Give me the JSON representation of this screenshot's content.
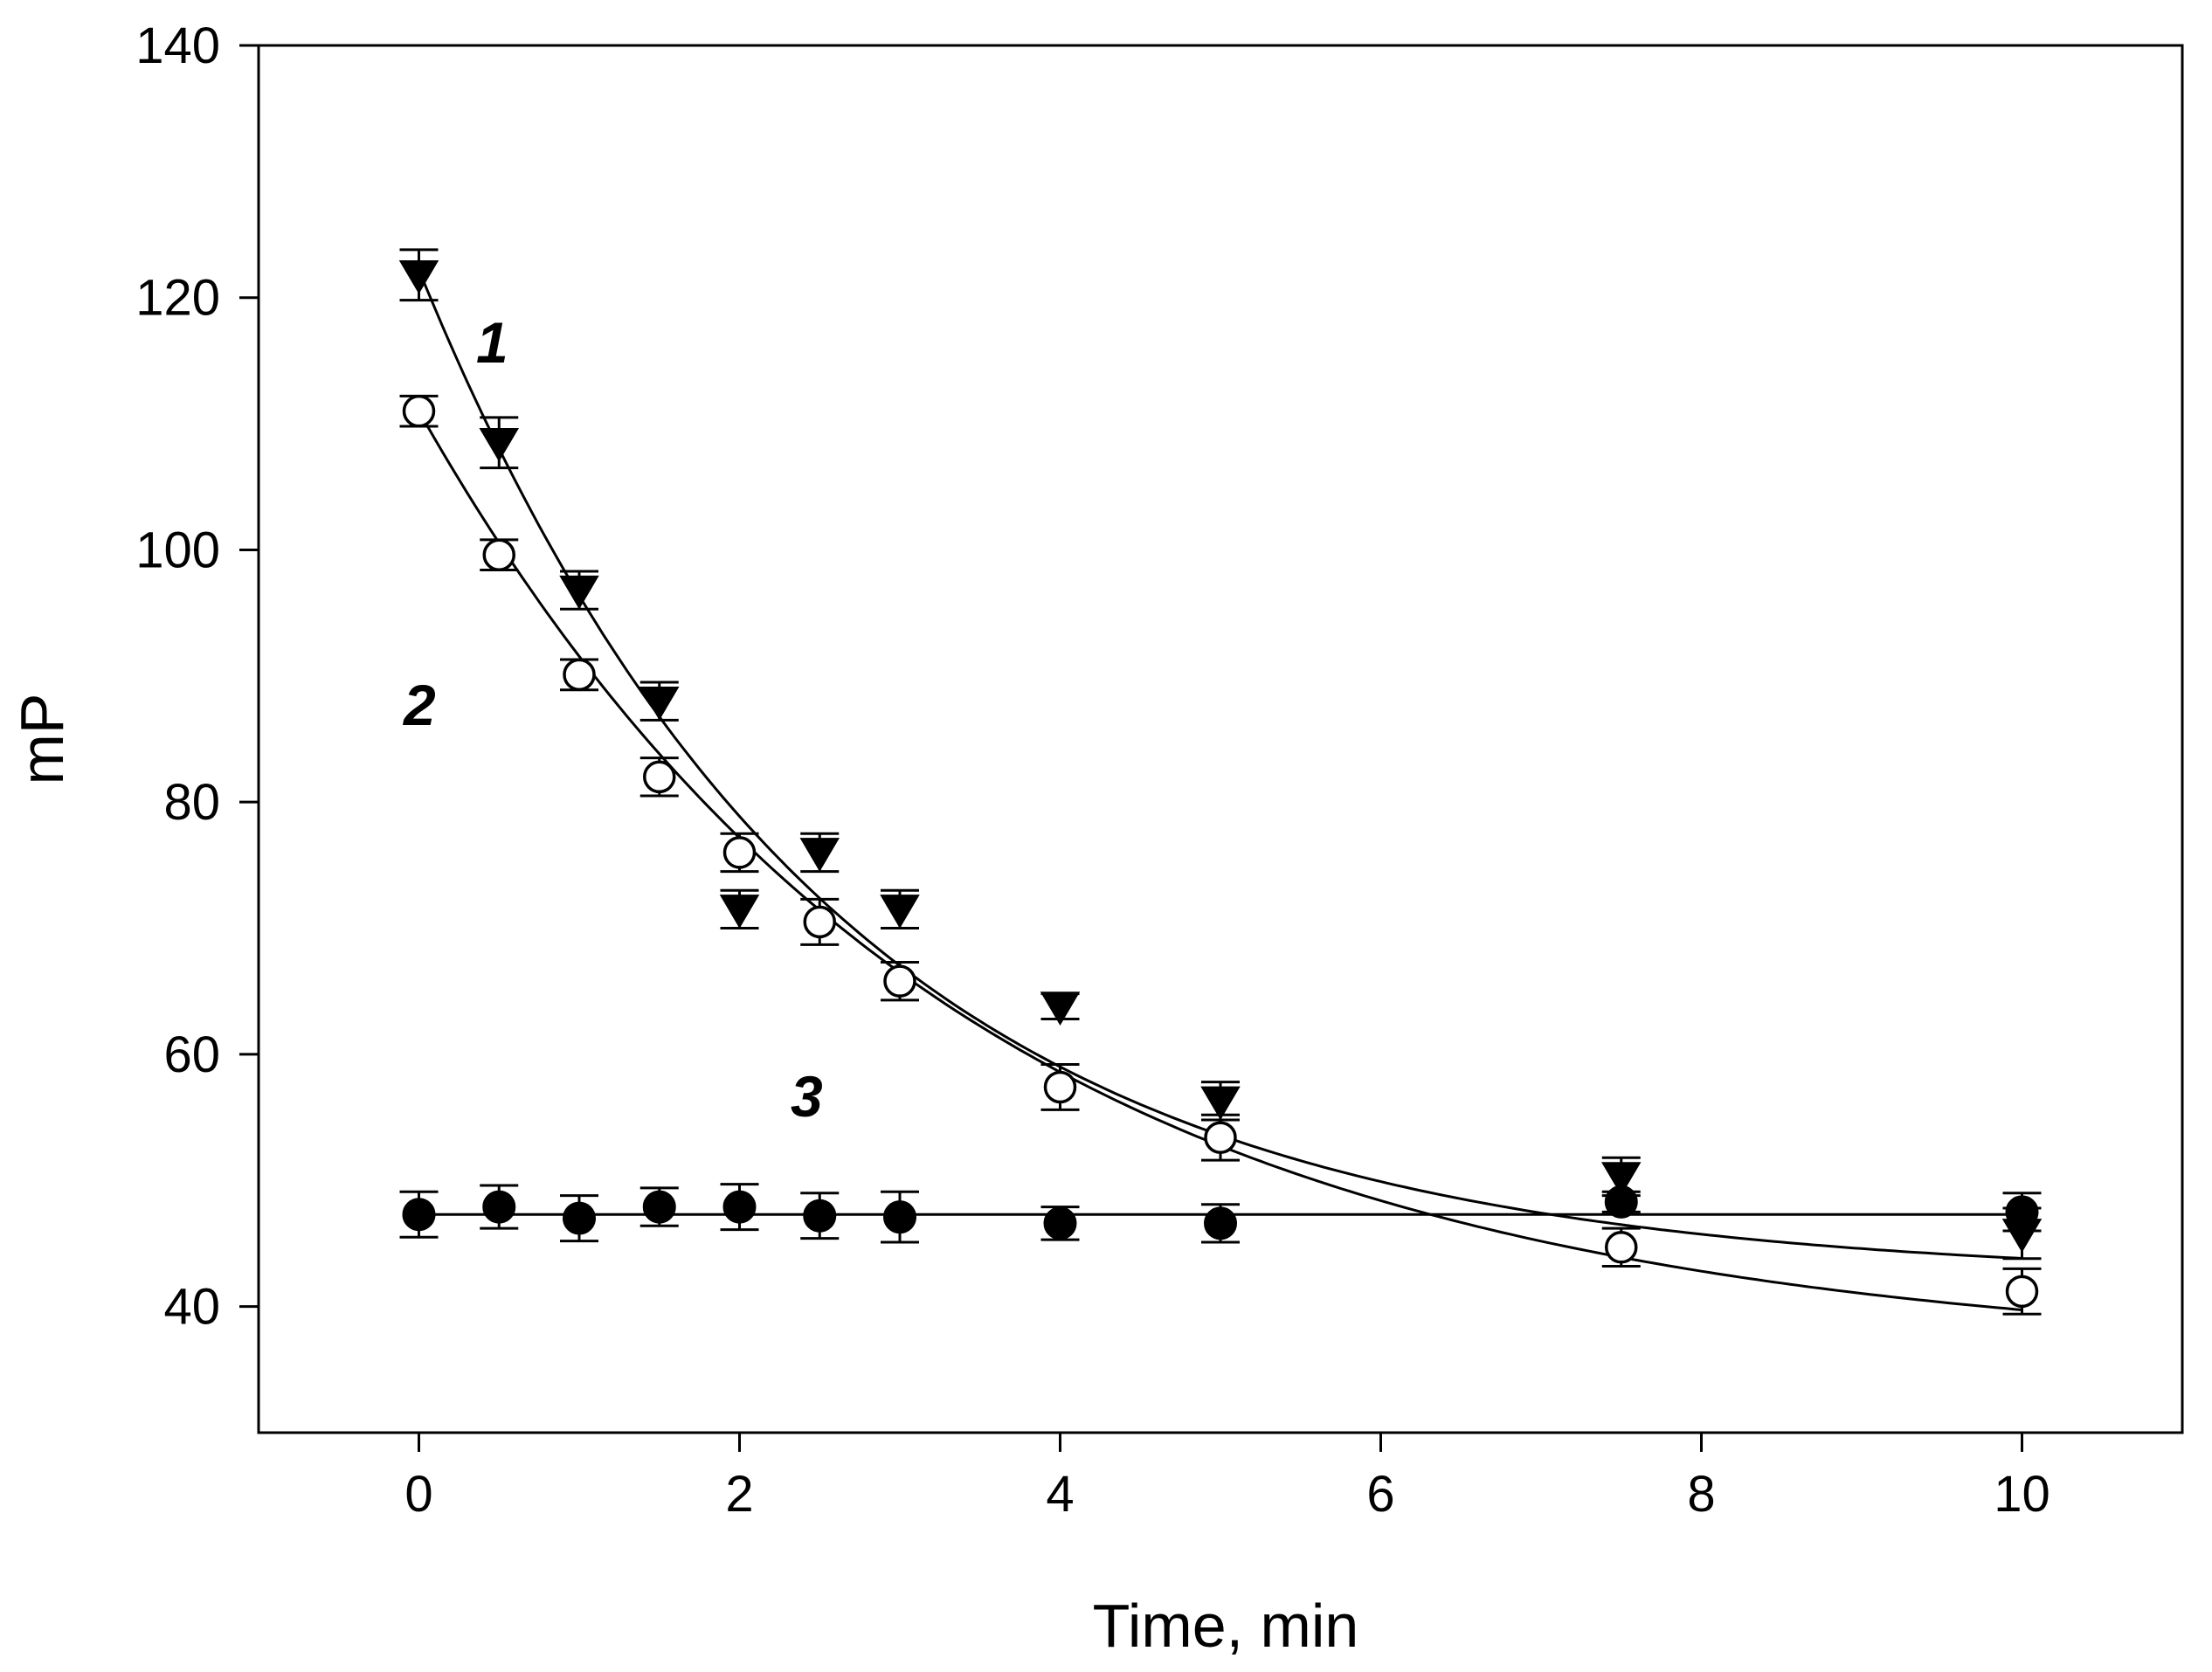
{
  "chart_data": {
    "type": "scatter",
    "title": "",
    "xlabel": "Time, min",
    "ylabel": "mP",
    "xlim": [
      -1,
      11
    ],
    "ylim": [
      30,
      140
    ],
    "x_ticks": [
      0,
      2,
      4,
      6,
      8,
      10
    ],
    "y_ticks": [
      40,
      60,
      80,
      100,
      120,
      140
    ],
    "grid": false,
    "series": [
      {
        "name": "1",
        "marker": "filled-triangle-down",
        "x": [
          0,
          0.5,
          1,
          1.5,
          2,
          2.5,
          3,
          4,
          5,
          7.5,
          10
        ],
        "y": [
          121.8,
          108.5,
          96.8,
          88.0,
          71.5,
          76.0,
          71.5,
          63.8,
          56.3,
          50.3,
          45.8
        ],
        "err": [
          2.0,
          2.0,
          1.5,
          1.5,
          1.5,
          1.5,
          1.5,
          1.0,
          1.5,
          1.5,
          2.0
        ],
        "fit": {
          "a": 42.2,
          "b": 80.0,
          "k": 0.39,
          "x_start": 0,
          "x_end": 10
        }
      },
      {
        "name": "2",
        "marker": "open-circle",
        "x": [
          0,
          0.5,
          1,
          1.5,
          2,
          2.5,
          3,
          4,
          5,
          7.5,
          10
        ],
        "y": [
          111.0,
          99.6,
          90.1,
          82.0,
          76.0,
          70.5,
          65.8,
          57.4,
          53.4,
          44.7,
          41.2
        ],
        "err": [
          1.2,
          1.2,
          1.2,
          1.5,
          1.5,
          1.8,
          1.5,
          1.8,
          1.8,
          1.5,
          1.8
        ],
        "fit": {
          "a": 36.0,
          "b": 75.0,
          "k": 0.3,
          "x_start": 0,
          "x_end": 10
        }
      },
      {
        "name": "3",
        "marker": "filled-circle",
        "x": [
          0,
          0.5,
          1,
          1.5,
          2,
          2.5,
          3,
          4,
          5,
          7.5,
          10
        ],
        "y": [
          47.3,
          47.9,
          47.0,
          47.9,
          47.9,
          47.2,
          47.1,
          46.6,
          46.6,
          48.3,
          47.5
        ],
        "err": [
          1.8,
          1.7,
          1.8,
          1.5,
          1.8,
          1.8,
          2.0,
          1.3,
          1.5,
          0.8,
          1.5
        ],
        "fit": {
          "a": 47.3,
          "b": 0,
          "k": 0,
          "x_start": 0,
          "x_end": 10
        }
      }
    ]
  }
}
